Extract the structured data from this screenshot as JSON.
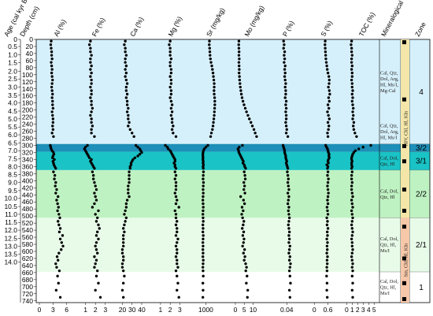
{
  "chart_data": {
    "type": "scatter",
    "layout": "stratigraphic multi-panel depth profile",
    "header": {
      "age_label": "Age (cal kyr BP)",
      "depth_label": "Depth (cm)",
      "mineral_label": "Mineralogical composition",
      "zone_label": "Zone"
    },
    "age_ticks": [
      "0",
      "0.5",
      "1.0",
      "1.5",
      "2.0",
      "2.5",
      "3.0",
      "3.5",
      "4.0",
      "4.5",
      "5.0",
      "5.5",
      "6.0",
      "6.5",
      "7.0",
      "7.5",
      "8.0",
      "8.5",
      "9.0",
      "9.5",
      "10.0",
      "10.5",
      "11.0",
      "11.5",
      "12.0",
      "12.5",
      "13.0",
      "13.5",
      "14.0"
    ],
    "age_depths": [
      0,
      20,
      43,
      66,
      90,
      112,
      135,
      158,
      180,
      203,
      225,
      248,
      270,
      293,
      315,
      338,
      360,
      383,
      405,
      428,
      450,
      473,
      495,
      518,
      540,
      563,
      585,
      608,
      630
    ],
    "depth_ticks": [
      0,
      20,
      40,
      60,
      80,
      100,
      120,
      140,
      160,
      180,
      200,
      220,
      240,
      260,
      280,
      300,
      320,
      340,
      360,
      380,
      400,
      420,
      440,
      460,
      480,
      500,
      520,
      540,
      560,
      580,
      600,
      620,
      640,
      660,
      680,
      700,
      720,
      740
    ],
    "depth_range": [
      0,
      745
    ],
    "bands": [
      {
        "from": 0,
        "to": 296,
        "color": "#d6f0fb",
        "zone": "4"
      },
      {
        "from": 296,
        "to": 318,
        "color": "#1e8fb8",
        "zone": "3/2"
      },
      {
        "from": 318,
        "to": 370,
        "color": "#1ac3c5",
        "zone": "3/1"
      },
      {
        "from": 370,
        "to": 505,
        "color": "#bff2c2",
        "zone": "2/2"
      },
      {
        "from": 505,
        "to": 658,
        "color": "#e8fbe9",
        "zone": "2/1"
      },
      {
        "from": 658,
        "to": 745,
        "color": "#ffffff",
        "zone": "1"
      }
    ],
    "panels": [
      {
        "label": "Al (%)",
        "ticks": [
          0,
          3,
          6
        ],
        "range": [
          0,
          7
        ],
        "values": [
          2.6,
          2.5,
          2.6,
          2.7,
          2.7,
          2.8,
          2.6,
          2.7,
          2.8,
          2.7,
          2.8,
          2.9,
          2.8,
          2.7,
          2.8,
          2.9,
          2.8,
          2.9,
          2.9,
          3.0,
          2.8,
          2.9,
          3.0,
          3.0,
          2.9,
          3.0,
          2.8,
          3.1,
          2.4,
          2.5,
          2.6,
          2.8,
          3.1,
          3.2,
          3.0,
          2.9,
          3.3,
          3.0,
          3.1,
          3.2,
          3.4,
          3.6,
          3.1,
          3.4,
          3.3,
          3.6,
          3.5,
          3.8,
          3.6,
          4.1,
          3.8,
          4.0,
          4.2,
          4.0,
          4.3,
          4.5,
          4.1,
          4.3,
          4.6,
          4.4,
          5.1,
          4.6,
          4.9,
          5.2,
          4.8,
          4.3,
          3.9,
          4.1,
          3.6,
          3.8,
          4.4,
          4.0,
          4.2,
          3.7,
          4.6
        ]
      },
      {
        "label": "Fe (%)",
        "ticks": [
          1,
          2,
          3
        ],
        "range": [
          0.2,
          3.4
        ],
        "values": [
          1.5,
          1.4,
          1.5,
          1.5,
          1.6,
          1.5,
          1.5,
          1.6,
          1.5,
          1.6,
          1.5,
          1.6,
          1.6,
          1.5,
          1.6,
          1.6,
          1.5,
          1.6,
          1.6,
          1.7,
          1.6,
          1.5,
          1.6,
          1.6,
          1.7,
          1.6,
          1.6,
          1.9,
          1.2,
          1.0,
          0.9,
          1.0,
          1.1,
          1.2,
          1.3,
          1.4,
          1.6,
          1.5,
          1.6,
          1.7,
          1.8,
          1.9,
          1.7,
          1.8,
          1.8,
          1.9,
          2.0,
          2.1,
          1.9,
          2.0,
          2.1,
          1.9,
          1.7,
          2.3,
          2.0,
          2.2,
          2.1,
          2.3,
          2.4,
          2.2,
          2.1,
          2.3,
          2.1,
          2.0,
          2.1,
          2.2,
          1.9,
          2.1,
          2.0,
          1.9,
          2.2,
          2.1,
          2.3,
          2.0,
          2.5
        ]
      },
      {
        "label": "Ca (%)",
        "ticks": [
          20,
          30,
          40
        ],
        "range": [
          13,
          46
        ],
        "values": [
          23,
          22,
          23,
          23,
          24,
          23,
          23,
          24,
          23,
          24,
          23,
          24,
          25,
          24,
          24,
          25,
          24,
          25,
          25,
          26,
          25,
          26,
          26,
          27,
          26,
          28,
          30,
          32,
          34,
          36,
          38,
          39,
          40,
          38,
          36,
          33,
          31,
          30,
          29,
          29,
          28,
          28,
          27,
          27,
          27,
          27,
          26,
          26,
          26,
          27,
          25,
          24,
          24,
          23,
          22,
          24,
          23,
          22,
          21,
          22,
          21,
          21,
          21,
          21,
          20,
          20,
          21,
          21,
          20,
          20,
          21,
          22,
          21,
          20,
          21
        ]
      },
      {
        "label": "Mg (%)",
        "ticks": [
          1,
          2,
          3
        ],
        "range": [
          0.3,
          3.6
        ],
        "values": [
          2.0,
          1.9,
          2.0,
          2.0,
          2.0,
          2.1,
          2.0,
          2.0,
          2.1,
          2.1,
          2.0,
          2.1,
          2.1,
          2.0,
          2.1,
          2.1,
          2.0,
          2.1,
          2.2,
          2.1,
          2.2,
          2.1,
          2.2,
          2.2,
          2.3,
          2.2,
          2.3,
          2.6,
          1.5,
          1.7,
          1.8,
          2.0,
          2.1,
          2.2,
          2.3,
          2.4,
          2.5,
          2.5,
          2.4,
          2.5,
          2.5,
          2.6,
          2.5,
          2.6,
          2.5,
          2.6,
          2.6,
          2.6,
          2.5,
          2.6,
          2.7,
          2.6,
          2.9,
          2.5,
          2.6,
          2.6,
          2.7,
          2.6,
          2.7,
          2.7,
          2.6,
          2.8,
          2.7,
          2.6,
          2.7,
          2.7,
          2.6,
          2.7,
          2.7,
          2.8,
          2.6,
          2.7,
          2.8,
          2.7,
          2.9
        ]
      },
      {
        "label": "Sr (mg/kg)",
        "ticks": [
          1000
        ],
        "range": [
          300,
          1900
        ],
        "values": [
          1180,
          1170,
          1190,
          1200,
          1210,
          1230,
          1260,
          1300,
          1330,
          1360,
          1380,
          1400,
          1420,
          1420,
          1410,
          1420,
          1440,
          1450,
          1450,
          1440,
          1430,
          1420,
          1400,
          1380,
          1360,
          1330,
          1280,
          1240,
          1100,
          1000,
          920,
          880,
          860,
          850,
          850,
          860,
          850,
          870,
          860,
          880,
          860,
          870,
          880,
          870,
          860,
          880,
          870,
          860,
          870,
          860,
          850,
          860,
          870,
          860,
          850,
          860,
          870,
          850,
          860,
          850,
          870,
          860,
          850,
          860,
          850,
          860,
          850,
          870,
          860,
          850,
          860,
          870,
          850,
          860,
          850
        ]
      },
      {
        "label": "Mo (mg/kg)",
        "ticks": [
          0,
          5,
          10
        ],
        "range": [
          -3,
          15
        ],
        "values": [
          2.0,
          1.9,
          2.0,
          2.1,
          2.0,
          2.2,
          2.0,
          2.1,
          2.2,
          2.1,
          2.3,
          2.4,
          2.6,
          2.8,
          3.1,
          3.4,
          3.8,
          4.3,
          4.9,
          5.6,
          6.3,
          7.1,
          7.9,
          8.8,
          9.6,
          10.5,
          11.2,
          12.0,
          4.0,
          2.2,
          1.5,
          1.8,
          2.0,
          2.5,
          3.0,
          3.5,
          4.0,
          4.5,
          4.3,
          5.0,
          5.3,
          5.8,
          5.0,
          5.4,
          5.6,
          4.8,
          5.2,
          4.8,
          5.4,
          3.0,
          4.6,
          5.2,
          3.8,
          4.4,
          3.6,
          4.1,
          4.8,
          4.4,
          3.9,
          4.7,
          4.2,
          4.9,
          4.6,
          4.1,
          5.2,
          4.6,
          5.4,
          5.0,
          5.8,
          6.3,
          5.9,
          6.6,
          6.2,
          7.0,
          6.8
        ]
      },
      {
        "label": "P (%)",
        "ticks": [
          0.04
        ],
        "range": [
          0.005,
          0.065
        ],
        "values": [
          0.034,
          0.035,
          0.034,
          0.036,
          0.035,
          0.036,
          0.035,
          0.037,
          0.036,
          0.037,
          0.036,
          0.037,
          0.038,
          0.037,
          0.038,
          0.038,
          0.037,
          0.039,
          0.038,
          0.039,
          0.038,
          0.039,
          0.039,
          0.038,
          0.039,
          0.04,
          0.039,
          0.042,
          0.033,
          0.034,
          0.035,
          0.036,
          0.036,
          0.037,
          0.038,
          0.038,
          0.039,
          0.04,
          0.039,
          0.04,
          0.041,
          0.042,
          0.041,
          0.042,
          0.043,
          0.042,
          0.043,
          0.044,
          0.042,
          0.044,
          0.043,
          0.042,
          0.044,
          0.043,
          0.044,
          0.045,
          0.044,
          0.043,
          0.044,
          0.045,
          0.044,
          0.045,
          0.044,
          0.046,
          0.045,
          0.044,
          0.046,
          0.045,
          0.047,
          0.046,
          0.045,
          0.046,
          0.047,
          0.045,
          0.046
        ]
      },
      {
        "label": "S (%)",
        "ticks": [
          0.0,
          0.6
        ],
        "range": [
          -0.35,
          1.05
        ],
        "values": [
          0.48,
          0.47,
          0.48,
          0.49,
          0.5,
          0.51,
          0.53,
          0.55,
          0.57,
          0.6,
          0.64,
          0.66,
          0.65,
          0.62,
          0.66,
          0.68,
          0.63,
          0.66,
          0.6,
          0.64,
          0.58,
          0.62,
          0.66,
          0.6,
          0.64,
          0.62,
          0.58,
          0.6,
          0.5,
          0.54,
          0.58,
          0.6,
          0.62,
          0.65,
          0.64,
          0.66,
          0.62,
          0.6,
          0.62,
          0.55,
          0.6,
          0.58,
          0.6,
          0.58,
          0.62,
          0.6,
          0.58,
          0.6,
          0.62,
          0.6,
          0.58,
          0.6,
          0.56,
          0.58,
          0.6,
          0.55,
          0.58,
          0.56,
          0.6,
          0.57,
          0.58,
          0.55,
          0.58,
          0.56,
          0.57,
          0.55,
          0.58,
          0.56,
          0.57,
          0.55,
          0.56,
          0.54,
          0.56,
          0.55,
          0.57
        ]
      },
      {
        "label": "TOC (%)",
        "ticks": [
          0,
          1,
          2,
          3,
          4,
          5
        ],
        "range": [
          -0.4,
          5.4
        ],
        "values": [
          0.9,
          0.8,
          0.9,
          0.9,
          1.0,
          0.9,
          0.9,
          1.0,
          0.9,
          1.0,
          1.0,
          0.9,
          1.0,
          1.0,
          1.1,
          1.0,
          1.1,
          1.0,
          1.1,
          1.2,
          1.1,
          1.2,
          1.1,
          1.3,
          1.2,
          1.3,
          1.5,
          1.8,
          4.4,
          3.0,
          2.2,
          1.6,
          1.3,
          1.1,
          1.0,
          0.9,
          0.9,
          1.0,
          0.9,
          0.9,
          1.0,
          0.9,
          1.0,
          0.9,
          0.9,
          1.0,
          0.9,
          0.9,
          1.0,
          1.1,
          0.9,
          1.0,
          1.1,
          0.9,
          1.0,
          1.1,
          1.0,
          0.9,
          1.0,
          1.1,
          1.0,
          0.9,
          1.0,
          1.0,
          1.1,
          1.0,
          0.9,
          1.0,
          1.1,
          1.0,
          1.1,
          1.0,
          1.1,
          1.0,
          1.1
        ]
      }
    ],
    "sample_depths": [
      5,
      15,
      25,
      35,
      45,
      55,
      65,
      75,
      85,
      95,
      105,
      115,
      125,
      135,
      145,
      155,
      165,
      175,
      185,
      195,
      205,
      215,
      225,
      235,
      245,
      255,
      265,
      275,
      300,
      305,
      310,
      315,
      320,
      325,
      330,
      335,
      340,
      345,
      350,
      355,
      360,
      365,
      375,
      385,
      395,
      405,
      415,
      425,
      435,
      445,
      455,
      465,
      475,
      485,
      495,
      505,
      515,
      525,
      535,
      545,
      555,
      565,
      575,
      585,
      595,
      605,
      615,
      625,
      635,
      645,
      655,
      670,
      690,
      710,
      730
    ],
    "mineralogy": [
      {
        "lines": [
          "Cal, Qtz,",
          "Dol, Arg,",
          "Hl, Ms/I,",
          "Mg-Cal"
        ]
      },
      {
        "lines": [
          "Cal, Qtz,",
          "Dol, Arg,",
          "Hl, Ms/I"
        ]
      },
      {
        "lines": [
          "Cal, Dol,",
          "Qtz, Hl"
        ]
      },
      {
        "lines": [
          "Cal, Dol,",
          "Qtz, Hl"
        ]
      },
      {
        "lines": [
          "Cal, Dol,",
          "Qtz, Hl,",
          "Ms/I"
        ]
      },
      {
        "lines": [
          "Cal, Dol,",
          "Qtz, Hl,",
          "Ms/I"
        ]
      }
    ],
    "clay_groups": [
      {
        "text": "HIV, Chl, Hl, Kln",
        "color": "#f4e6a8"
      },
      {
        "text": "Sm, Chl, Hl, Kln",
        "color": "#f6c7a8"
      }
    ],
    "clay_markers": [
      8,
      170,
      302,
      345,
      425,
      485,
      530,
      620,
      690,
      735
    ],
    "colors": {
      "dot": "#000000",
      "axis": "#000000"
    }
  }
}
